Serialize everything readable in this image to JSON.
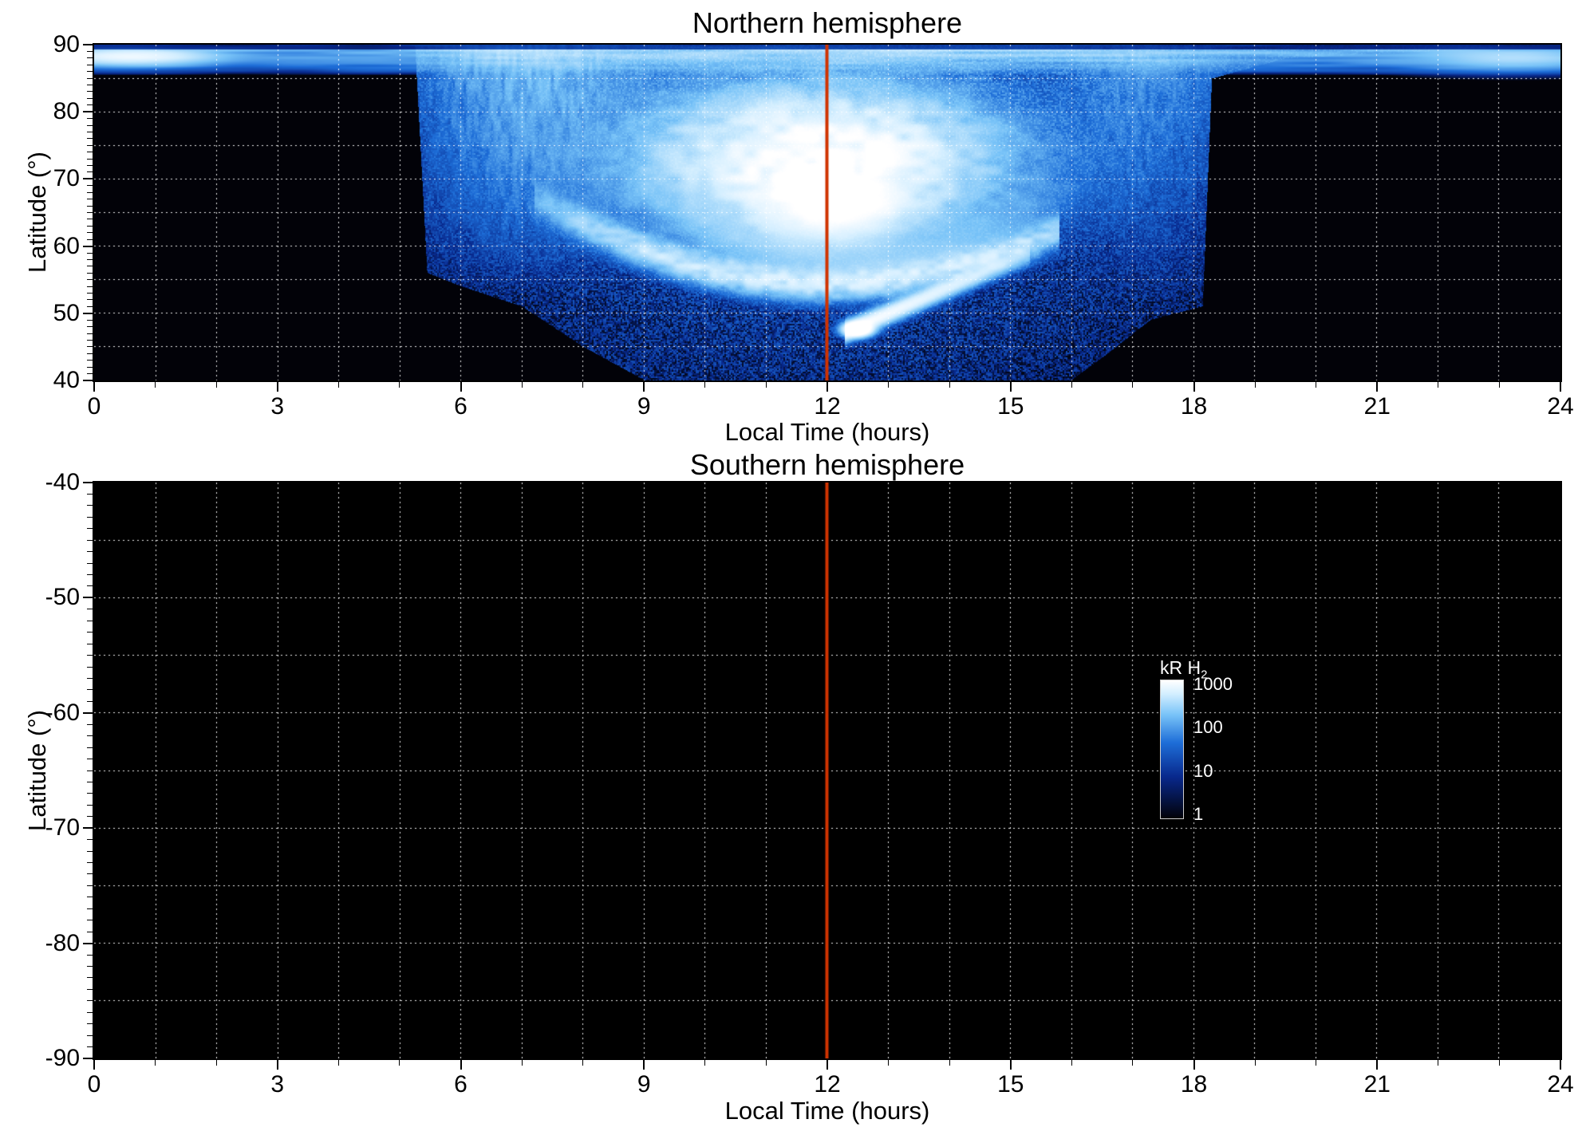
{
  "figure": {
    "background": "#ffffff",
    "text_color": "#000000"
  },
  "chart_data": [
    {
      "type": "heatmap",
      "title": "Northern hemisphere",
      "xlabel": "Local Time (hours)",
      "ylabel": "Latitude (°)",
      "xlim": [
        0,
        24
      ],
      "y_top": 90,
      "y_bottom": 40,
      "xticks": [
        0,
        3,
        6,
        9,
        12,
        15,
        18,
        21,
        24
      ],
      "yticks": [
        90,
        80,
        70,
        60,
        50,
        40
      ],
      "x_minor_step": 1,
      "y_minor_step": 1,
      "grid": {
        "x_step": 1,
        "y_step": 5,
        "color": "#ffffff",
        "style": "dotted"
      },
      "marker_line": {
        "x": 12,
        "color": "#d03300",
        "width": 4
      },
      "features": {
        "description": "H2 auroral emission map: bright white dayside oval/cusp centered near 12 h local time at 60-85 deg latitude, diffuse speckled blue emission from ~5.5 h to ~18 h extending down to 40 deg around noon, thin bright polar band at 86-89.5 deg at all local times, black (below 1 kR) elsewhere",
        "polar_band": {
          "lat_min": 85.5,
          "lat_max": 89.4,
          "intensity": 420
        },
        "top_dark_above": 89.4,
        "boundary": [
          [
            0,
            90
          ],
          [
            5.25,
            90
          ],
          [
            5.45,
            56
          ],
          [
            6,
            54
          ],
          [
            7,
            51
          ],
          [
            8,
            45
          ],
          [
            9,
            40
          ],
          [
            16,
            40
          ],
          [
            16.6,
            44
          ],
          [
            17.3,
            49
          ],
          [
            18.15,
            51
          ],
          [
            18.3,
            85
          ],
          [
            19.5,
            88
          ],
          [
            24,
            90
          ]
        ],
        "dayside_blob": {
          "t": 11.9,
          "lat": 73,
          "sig_t": 2.2,
          "sig_lat": 8.5,
          "intensity": 1400
        },
        "core_blob": {
          "t": 12.1,
          "lat": 66,
          "sig_t": 1.0,
          "sig_lat": 4.5,
          "intensity": 900
        },
        "oval_arc": {
          "t0": 12,
          "lat0": 54.5,
          "curv": 0.55,
          "width": 1.4,
          "t_min": 7.2,
          "t_max": 15.8,
          "intensity": 650
        },
        "outer_arc": {
          "t0": 12.4,
          "lat0": 58,
          "curv": 0.8,
          "width": 2.2,
          "t_sig": 2.8,
          "intensity": 160
        },
        "sub_arc": {
          "t_start": 12.4,
          "lat_start": 47.6,
          "t_end": 15.2,
          "lat_end": 58.5,
          "width": 0.8,
          "intensity": 800
        },
        "bright_spot": {
          "t": 12.5,
          "lat": 47.6,
          "sig_t": 0.18,
          "sig_lat": 0.8,
          "intensity": 2500
        },
        "dawn_column": {
          "t": 7.2,
          "t_sig": 1.5,
          "lat_min": 52,
          "intensity": 240
        },
        "dusk_column": {
          "t": 17.2,
          "t_sig": 1.1,
          "lat_min": 50,
          "intensity": 120
        },
        "corner_wisp_left": {
          "t": 0.6,
          "lat": 88.3,
          "intensity": 700
        },
        "corner_wisp_right": {
          "t": 23.2,
          "lat": 88.0,
          "intensity": 260
        },
        "diffuse": {
          "base": 2.5,
          "noon_boost": 30,
          "lat_boost": 10
        }
      }
    },
    {
      "type": "heatmap",
      "title": "Southern hemisphere",
      "xlabel": "Local Time (hours)",
      "ylabel": "Latitude (°)",
      "xlim": [
        0,
        24
      ],
      "y_top": -40,
      "y_bottom": -90,
      "xticks": [
        0,
        3,
        6,
        9,
        12,
        15,
        18,
        21,
        24
      ],
      "yticks": [
        -40,
        -50,
        -60,
        -70,
        -80,
        -90
      ],
      "x_minor_step": 1,
      "y_minor_step": 1,
      "grid": {
        "x_step": 1,
        "y_step": 5,
        "color": "#ffffff",
        "style": "dotted"
      },
      "marker_line": {
        "x": 12,
        "color": "#d03300",
        "width": 4
      },
      "features": {
        "description": "no detectable emission: below 1 kR (black) at all local times and latitudes"
      }
    }
  ],
  "colorbar": {
    "label": "kR H",
    "label_sub": "2",
    "scale": "log",
    "min": 1,
    "max": 1000,
    "ticks": [
      1000,
      100,
      10,
      1
    ],
    "text_color": "#ffffff",
    "stops": [
      [
        1,
        "#ffffff"
      ],
      [
        0.9,
        "#d2eeff"
      ],
      [
        0.75,
        "#78c3f8"
      ],
      [
        0.55,
        "#1e6ed8"
      ],
      [
        0.3,
        "#08288c"
      ],
      [
        0,
        "#020208"
      ]
    ]
  }
}
